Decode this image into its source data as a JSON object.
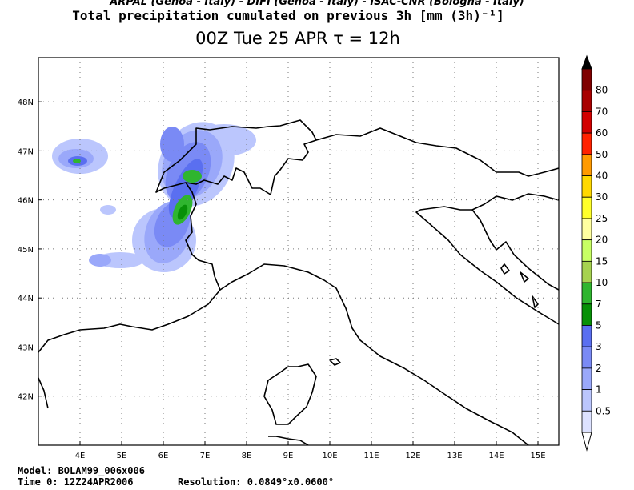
{
  "header": {
    "institutions": "ARPAL (Genoa - Italy)  -  DIFI (Genoa - Italy)  -  ISAC-CNR (Bologna - Italy)",
    "product": "Total precipitation cumulated on previous 3h [mm (3h)⁻¹]",
    "time_label": "00Z Tue 25 APR   τ = 12h"
  },
  "map": {
    "lon_ticks": [
      "4E",
      "5E",
      "6E",
      "7E",
      "8E",
      "9E",
      "10E",
      "11E",
      "12E",
      "13E",
      "14E",
      "15E"
    ],
    "lat_ticks": [
      "48N",
      "47N",
      "46N",
      "45N",
      "44N",
      "43N",
      "42N"
    ],
    "lon_range": [
      3.0,
      15.5
    ],
    "lat_range": [
      41.0,
      48.9
    ],
    "frame_color": "#000000",
    "coastline_color": "#000000",
    "grid": "dotted"
  },
  "colorbar": {
    "levels": [
      "80",
      "70",
      "60",
      "50",
      "40",
      "30",
      "25",
      "20",
      "15",
      "10",
      "7",
      "5",
      "3",
      "2",
      "1",
      "0.5"
    ],
    "colors": [
      "#7f0000",
      "#a80000",
      "#d20000",
      "#ff2200",
      "#ff9a00",
      "#ffd800",
      "#ffff2a",
      "#ffffa0",
      "#c8ff64",
      "#a6d250",
      "#2fb52f",
      "#079007",
      "#5a6ff0",
      "#7a8af5",
      "#9aa8fa",
      "#bbc6fd",
      "#dde2ff"
    ],
    "top_arrow_color": "#000000",
    "bottom_arrow_color": "#ffffff"
  },
  "footer": {
    "model": "Model: BOLAM99_006x006",
    "time0": "Time 0: 12Z24APR2006",
    "resolution": "Resolution: 0.0849°x0.0600°"
  }
}
